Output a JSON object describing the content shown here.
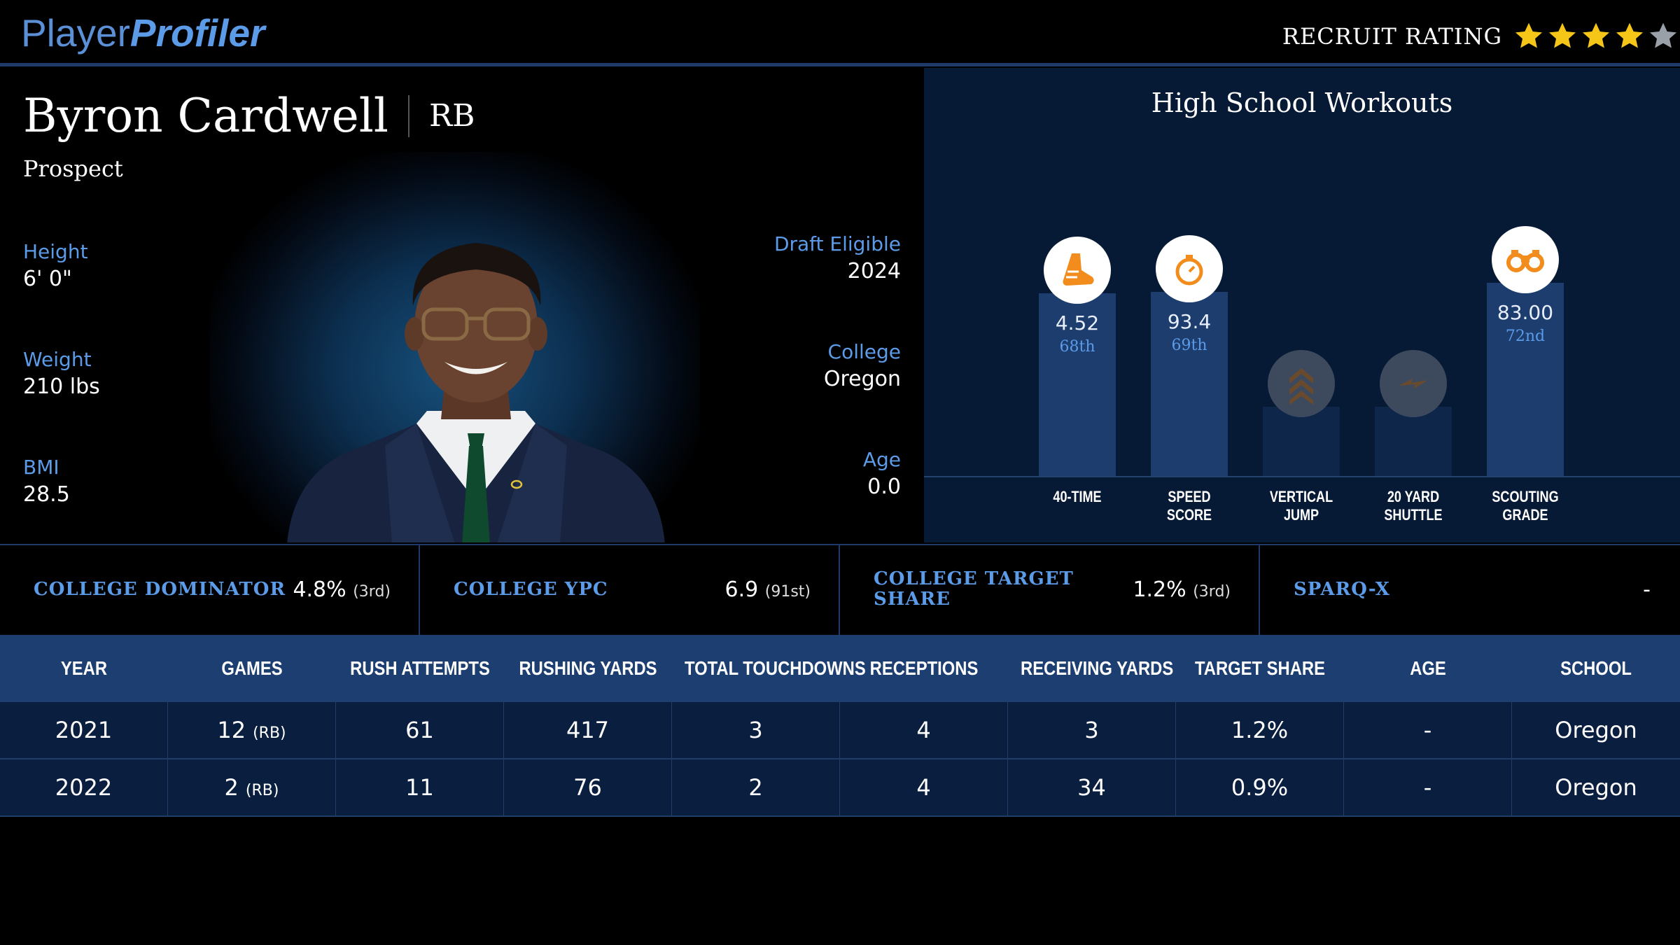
{
  "header": {
    "logo_part1": "Player",
    "logo_part2": "Profiler",
    "rating_label": "RECRUIT RATING",
    "stars_filled": 4,
    "stars_total": 5,
    "star_color": "#f5c518",
    "star_empty_color": "#9aa0a8"
  },
  "player": {
    "name": "Byron Cardwell",
    "position": "RB",
    "status": "Prospect",
    "height_label": "Height",
    "height_value": "6' 0\"",
    "weight_label": "Weight",
    "weight_value": "210 lbs",
    "bmi_label": "BMI",
    "bmi_value": "28.5",
    "draft_label": "Draft Eligible",
    "draft_value": "2024",
    "college_label": "College",
    "college_value": "Oregon",
    "age_label": "Age",
    "age_value": "0.0"
  },
  "workouts": {
    "title": "High School Workouts",
    "items": [
      {
        "label_line1": "40-TIME",
        "label_line2": "",
        "value": "4.52",
        "percentile": "68th",
        "icon": "running-shoe-icon"
      },
      {
        "label_line1": "SPEED",
        "label_line2": "SCORE",
        "value": "93.4",
        "percentile": "69th",
        "icon": "stopwatch-icon"
      },
      {
        "label_line1": "VERTICAL",
        "label_line2": "JUMP",
        "value": "",
        "percentile": "",
        "icon": "chevrons-up-icon"
      },
      {
        "label_line1": "20 YARD",
        "label_line2": "SHUTTLE",
        "value": "",
        "percentile": "",
        "icon": "lightning-icon"
      },
      {
        "label_line1": "SCOUTING",
        "label_line2": "GRADE",
        "value": "83.00",
        "percentile": "72nd",
        "icon": "binoculars-icon"
      }
    ]
  },
  "metrics": [
    {
      "label_line1": "COLLEGE DOMINATOR",
      "label_line2": "",
      "value": "4.8%",
      "rank": "(3rd)"
    },
    {
      "label_line1": "COLLEGE YPC",
      "label_line2": "",
      "value": "6.9",
      "rank": "(91st)"
    },
    {
      "label_line1": "COLLEGE TARGET",
      "label_line2": "SHARE",
      "value": "1.2%",
      "rank": "(3rd)"
    },
    {
      "label_line1": "SPARQ-X",
      "label_line2": "",
      "value": "-",
      "rank": ""
    }
  ],
  "table": {
    "headers": [
      "YEAR",
      "GAMES",
      "RUSH ATTEMPTS",
      "RUSHING YARDS",
      "TOTAL TOUCHDOWNS",
      "RECEPTIONS",
      "RECEIVING YARDS",
      "TARGET SHARE",
      "AGE",
      "SCHOOL"
    ],
    "rows": [
      {
        "year": "2021",
        "games": "12",
        "games_pos": "(RB)",
        "rush_attempts": "61",
        "rushing_yards": "417",
        "total_touchdowns": "3",
        "receptions": "4",
        "receiving_yards": "3",
        "target_share": "1.2%",
        "age": "-",
        "school": "Oregon"
      },
      {
        "year": "2022",
        "games": "2",
        "games_pos": "(RB)",
        "rush_attempts": "11",
        "rushing_yards": "76",
        "total_touchdowns": "2",
        "receptions": "4",
        "receiving_yards": "34",
        "target_share": "0.9%",
        "age": "-",
        "school": "Oregon"
      }
    ]
  }
}
